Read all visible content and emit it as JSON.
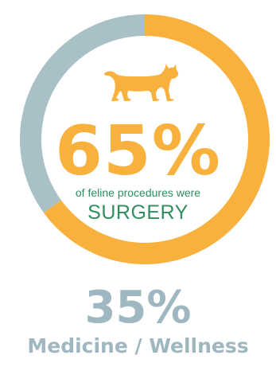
{
  "chart_data": {
    "type": "pie",
    "variant": "donut",
    "slices": [
      {
        "label": "SURGERY",
        "value": 65,
        "color": "#f9b13e"
      },
      {
        "label": "Medicine / Wellness",
        "value": 35,
        "color": "#a9c0c6"
      }
    ],
    "center": {
      "percent": "65%",
      "caption": "of feline procedures were",
      "category": "SURGERY",
      "icon": "cat-icon"
    },
    "secondary": {
      "percent": "35%",
      "label": "Medicine / Wellness"
    }
  },
  "colors": {
    "accent": "#f9b13e",
    "secondary": "#a9c0c6",
    "secondary_text": "#9fb7c0",
    "category_text": "#2f8f5f"
  }
}
